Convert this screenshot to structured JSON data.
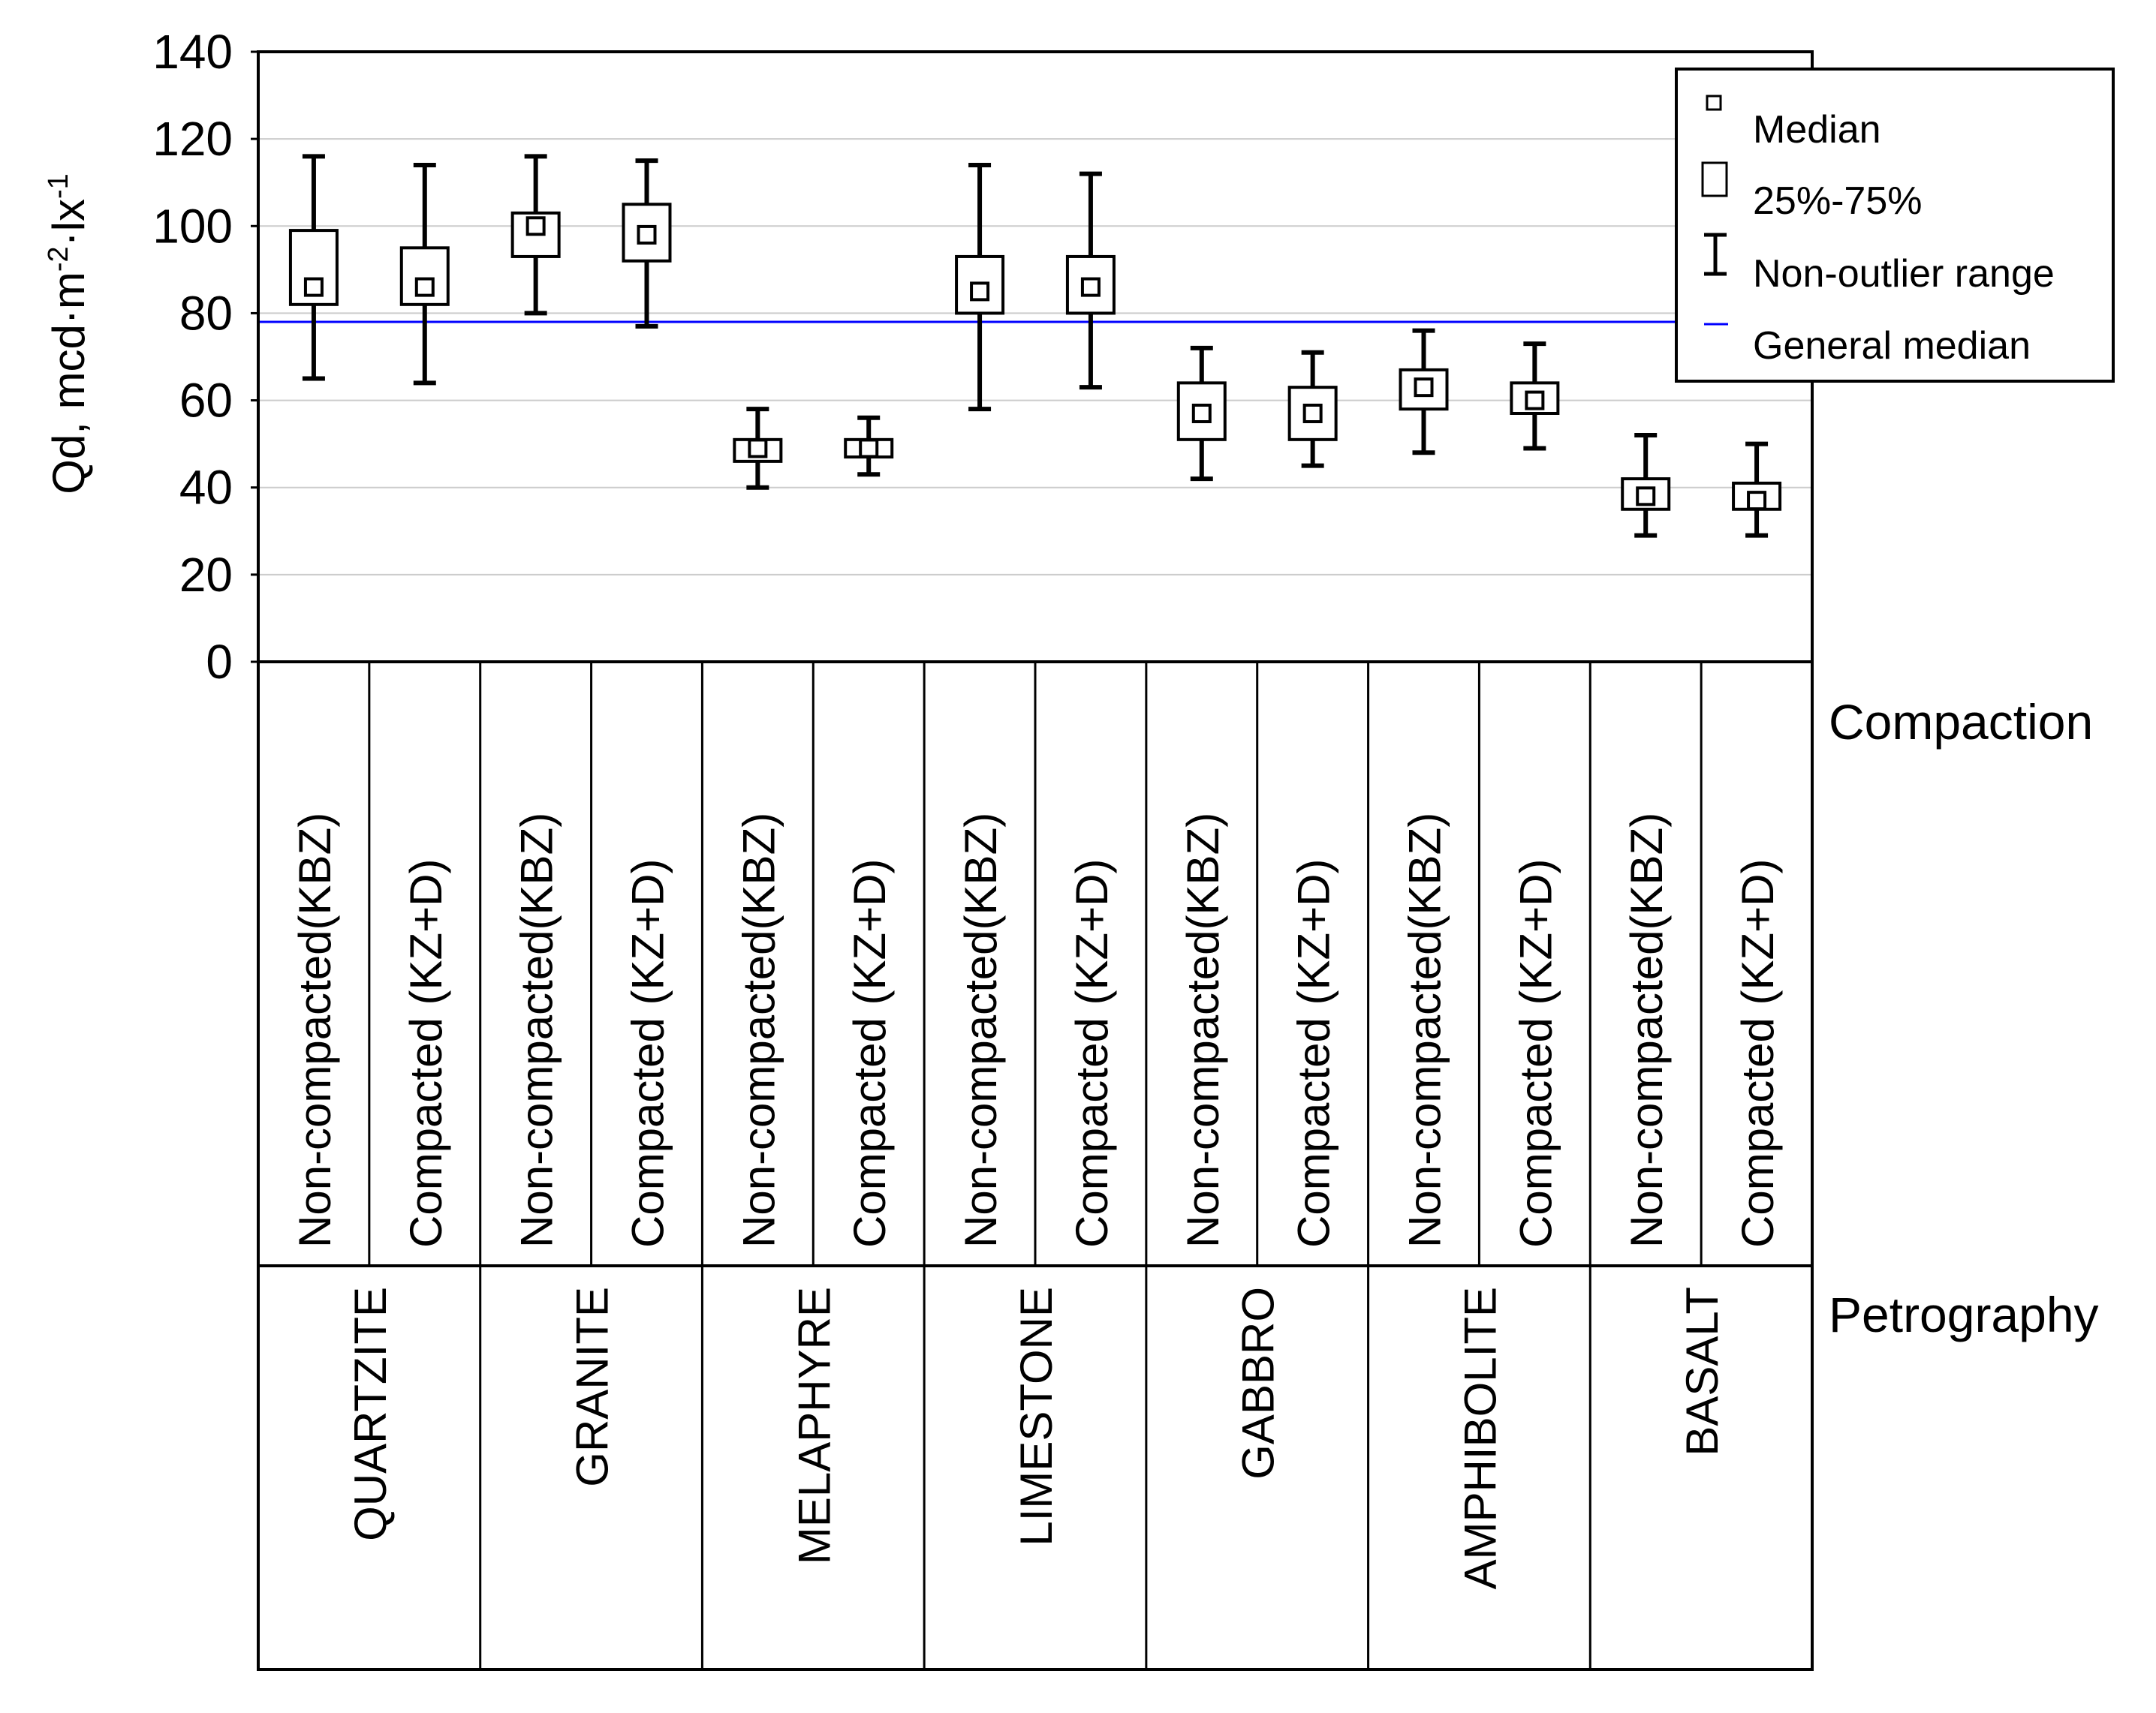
{
  "chart_data": {
    "type": "boxplot",
    "ylabel_parts": {
      "base": "Qd, mcd·m",
      "exp1": "-2",
      "mid": "·lx",
      "exp2": "-1"
    },
    "ylim": [
      0,
      140
    ],
    "yticks": [
      0,
      20,
      40,
      60,
      80,
      100,
      120,
      140
    ],
    "grid": true,
    "general_median": 78,
    "compaction_title": "Compaction",
    "petrography_title": "Petrography",
    "groups": [
      "QUARTZITE",
      "GRANITE",
      "MELAPHYRE",
      "LIMESTONE",
      "GABBRO",
      "AMPHIBOLITE",
      "BASALT"
    ],
    "categories": [
      "Non-compacted(KBZ)",
      "Compacted (KZ+D)",
      "Non-compacted(KBZ)",
      "Compacted (KZ+D)",
      "Non-compacted(KBZ)",
      "Compacted (KZ+D)",
      "Non-compacted(KBZ)",
      "Compacted (KZ+D)",
      "Non-compacted(KBZ)",
      "Compacted (KZ+D)",
      "Non-compacted(KBZ)",
      "Compacted (KZ+D)",
      "Non-compacted(KBZ)",
      "Compacted (KZ+D)"
    ],
    "series": [
      {
        "name": "QUARTZITE Non-compacted",
        "min": 65,
        "q1": 82,
        "median": 86,
        "q3": 99,
        "max": 116
      },
      {
        "name": "QUARTZITE Compacted",
        "min": 64,
        "q1": 82,
        "median": 86,
        "q3": 95,
        "max": 114
      },
      {
        "name": "GRANITE Non-compacted",
        "min": 80,
        "q1": 93,
        "median": 100,
        "q3": 103,
        "max": 116
      },
      {
        "name": "GRANITE Compacted",
        "min": 77,
        "q1": 92,
        "median": 98,
        "q3": 105,
        "max": 115
      },
      {
        "name": "MELAPHYRE Non-compacted",
        "min": 40,
        "q1": 46,
        "median": 49,
        "q3": 51,
        "max": 58
      },
      {
        "name": "MELAPHYRE Compacted",
        "min": 43,
        "q1": 47,
        "median": 49,
        "q3": 51,
        "max": 56
      },
      {
        "name": "LIMESTONE Non-compacted",
        "min": 58,
        "q1": 80,
        "median": 85,
        "q3": 93,
        "max": 114
      },
      {
        "name": "LIMESTONE Compacted",
        "min": 63,
        "q1": 80,
        "median": 86,
        "q3": 93,
        "max": 112
      },
      {
        "name": "GABBRO Non-compacted",
        "min": 42,
        "q1": 51,
        "median": 57,
        "q3": 64,
        "max": 72
      },
      {
        "name": "GABBRO Compacted",
        "min": 45,
        "q1": 51,
        "median": 57,
        "q3": 63,
        "max": 71
      },
      {
        "name": "AMPHIBOLITE Non-compacted",
        "min": 48,
        "q1": 58,
        "median": 63,
        "q3": 67,
        "max": 76
      },
      {
        "name": "AMPHIBOLITE Compacted",
        "min": 49,
        "q1": 57,
        "median": 60,
        "q3": 64,
        "max": 73
      },
      {
        "name": "BASALT Non-compacted",
        "min": 29,
        "q1": 35,
        "median": 38,
        "q3": 42,
        "max": 52
      },
      {
        "name": "BASALT Compacted",
        "min": 29,
        "q1": 35,
        "median": 37,
        "q3": 41,
        "max": 50
      }
    ],
    "legend": {
      "position": "top-right",
      "items": [
        "Median",
        "25%-75%",
        "Non-outlier range",
        "General median"
      ]
    },
    "colors": {
      "general_median": "#0000ff",
      "box": "#000000",
      "grid": "#cccccc"
    }
  }
}
